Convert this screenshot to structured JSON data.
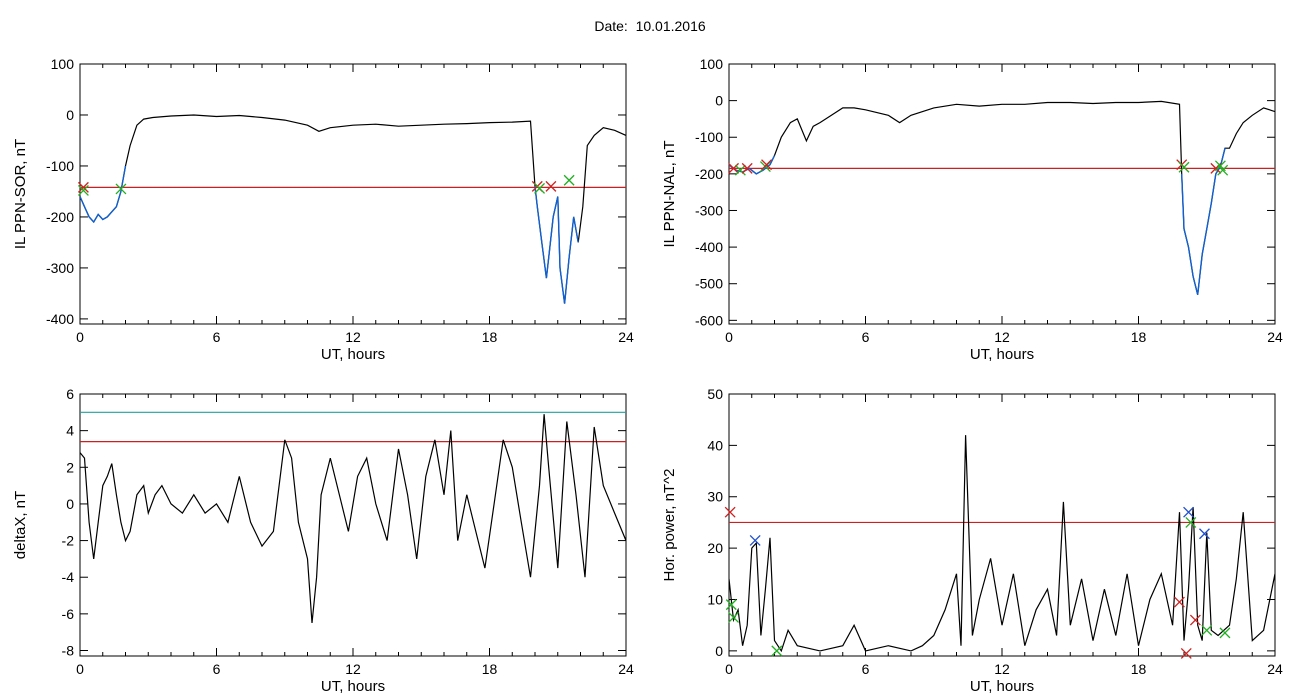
{
  "figure_title": "Date:  10.01.2016",
  "colors": {
    "trace": "#000000",
    "highlight": "#1060d0",
    "threshold": "#cc2020",
    "threshold2": "#20a0a0",
    "marker_red": "#d02020",
    "marker_green": "#20b020",
    "marker_blue": "#2050d0"
  },
  "chart_data": [
    {
      "id": "p1",
      "type": "line",
      "xlabel": "UT, hours",
      "ylabel": "IL PPN-SOR, nT",
      "xlim": [
        0,
        24
      ],
      "ylim": [
        -410,
        100
      ],
      "xticks": [
        0,
        6,
        12,
        18,
        24
      ],
      "yticks": [
        -400,
        -300,
        -200,
        -100,
        0,
        100
      ],
      "series": [
        {
          "x": [
            0,
            0.2,
            0.4,
            0.6,
            0.8,
            1.0,
            1.2,
            1.4,
            1.6,
            1.8,
            2.0,
            2.2,
            2.5,
            2.8,
            3.2,
            4.0,
            5.0,
            6.0,
            7.0,
            8.0,
            9.0,
            10.0,
            10.5,
            11.0,
            12.0,
            13.0,
            14.0,
            15.0,
            16.0,
            17.0,
            18.0,
            19.0,
            19.8,
            20.0,
            20.1,
            20.3,
            20.5,
            20.6,
            20.8,
            21.0,
            21.1,
            21.3,
            21.5,
            21.7,
            21.9,
            22.1,
            22.3,
            22.6,
            23.0,
            23.5,
            24.0
          ],
          "y": [
            -160,
            -180,
            -200,
            -210,
            -195,
            -205,
            -200,
            -190,
            -180,
            -150,
            -100,
            -60,
            -20,
            -8,
            -5,
            -2,
            0,
            -3,
            -1,
            -5,
            -10,
            -20,
            -32,
            -25,
            -20,
            -18,
            -22,
            -20,
            -18,
            -17,
            -15,
            -14,
            -12,
            -140,
            -180,
            -250,
            -320,
            -280,
            -200,
            -160,
            -300,
            -370,
            -280,
            -200,
            -250,
            -180,
            -60,
            -40,
            -25,
            -30,
            -40
          ],
          "highlight": [
            [
              0,
              2.0
            ],
            [
              20.0,
              22.0
            ]
          ]
        }
      ],
      "thresholds": [
        {
          "y": -142,
          "color": "red"
        }
      ],
      "markers": [
        {
          "x": 0.15,
          "y": -142,
          "color": "red"
        },
        {
          "x": 0.15,
          "y": -148,
          "color": "green"
        },
        {
          "x": 1.8,
          "y": -145,
          "color": "green"
        },
        {
          "x": 20.1,
          "y": -140,
          "color": "red"
        },
        {
          "x": 20.2,
          "y": -144,
          "color": "green"
        },
        {
          "x": 20.7,
          "y": -140,
          "color": "red"
        },
        {
          "x": 21.5,
          "y": -128,
          "color": "green"
        }
      ]
    },
    {
      "id": "p2",
      "type": "line",
      "xlabel": "UT, hours",
      "ylabel": "IL PPN-NAL, nT",
      "xlim": [
        0,
        24
      ],
      "ylim": [
        -610,
        100
      ],
      "xticks": [
        0,
        6,
        12,
        18,
        24
      ],
      "yticks": [
        -600,
        -500,
        -400,
        -300,
        -200,
        -100,
        0,
        100
      ],
      "series": [
        {
          "x": [
            0,
            0.3,
            0.6,
            0.9,
            1.2,
            1.5,
            1.8,
            2.0,
            2.3,
            2.7,
            3.0,
            3.4,
            3.7,
            4.0,
            4.5,
            5.0,
            5.5,
            6.0,
            7.0,
            7.5,
            8.0,
            9.0,
            10.0,
            11.0,
            12.0,
            13.0,
            14.0,
            15.0,
            16.0,
            17.0,
            18.0,
            19.0,
            19.8,
            19.9,
            20.0,
            20.2,
            20.4,
            20.6,
            20.8,
            21.0,
            21.2,
            21.4,
            21.6,
            21.8,
            22.0,
            22.3,
            22.6,
            23.0,
            23.5,
            24.0
          ],
          "y": [
            -175,
            -190,
            -195,
            -185,
            -200,
            -190,
            -175,
            -150,
            -100,
            -60,
            -50,
            -110,
            -70,
            -60,
            -40,
            -20,
            -20,
            -25,
            -40,
            -60,
            -40,
            -20,
            -10,
            -15,
            -10,
            -10,
            -5,
            -5,
            -8,
            -5,
            -5,
            -2,
            -10,
            -200,
            -350,
            -400,
            -480,
            -530,
            -420,
            -350,
            -280,
            -200,
            -180,
            -130,
            -130,
            -90,
            -60,
            -40,
            -20,
            -30
          ],
          "highlight": [
            [
              0,
              2.0
            ],
            [
              19.9,
              21.8
            ]
          ]
        }
      ],
      "thresholds": [
        {
          "y": -185,
          "color": "red"
        }
      ],
      "markers": [
        {
          "x": 0.2,
          "y": -185,
          "color": "red"
        },
        {
          "x": 0.5,
          "y": -190,
          "color": "green"
        },
        {
          "x": 0.8,
          "y": -185,
          "color": "red"
        },
        {
          "x": 1.6,
          "y": -180,
          "color": "green"
        },
        {
          "x": 1.65,
          "y": -175,
          "color": "red"
        },
        {
          "x": 19.9,
          "y": -175,
          "color": "red"
        },
        {
          "x": 20.0,
          "y": -182,
          "color": "green"
        },
        {
          "x": 21.4,
          "y": -185,
          "color": "red"
        },
        {
          "x": 21.6,
          "y": -178,
          "color": "green"
        },
        {
          "x": 21.7,
          "y": -190,
          "color": "green"
        }
      ]
    },
    {
      "id": "p3",
      "type": "line",
      "xlabel": "UT, hours",
      "ylabel": "deltaX, nT",
      "xlim": [
        0,
        24
      ],
      "ylim": [
        -8.3,
        6
      ],
      "xticks": [
        0,
        6,
        12,
        18,
        24
      ],
      "yticks": [
        -8,
        -6,
        -4,
        -2,
        0,
        2,
        4,
        6
      ],
      "series": [
        {
          "x": [
            0,
            0.2,
            0.4,
            0.6,
            0.8,
            1.0,
            1.2,
            1.4,
            1.6,
            1.8,
            2.0,
            2.2,
            2.5,
            2.8,
            3.0,
            3.3,
            3.6,
            4.0,
            4.5,
            5.0,
            5.5,
            6.0,
            6.5,
            7.0,
            7.5,
            8.0,
            8.5,
            9.0,
            9.3,
            9.6,
            10.0,
            10.2,
            10.4,
            10.6,
            11.0,
            11.5,
            11.8,
            12.2,
            12.6,
            13.0,
            13.5,
            14.0,
            14.4,
            14.8,
            15.2,
            15.6,
            16.0,
            16.3,
            16.6,
            17.0,
            17.4,
            17.8,
            18.2,
            18.6,
            19.0,
            19.4,
            19.8,
            20.2,
            20.4,
            20.6,
            21.0,
            21.4,
            21.8,
            22.2,
            22.6,
            23.0,
            23.5,
            24.0
          ],
          "y": [
            2.8,
            2.5,
            -1.0,
            -3.0,
            -1.0,
            1.0,
            1.5,
            2.2,
            0.5,
            -1.0,
            -2.0,
            -1.5,
            0.5,
            1.0,
            -0.5,
            0.5,
            1.0,
            0.0,
            -0.5,
            0.5,
            -0.5,
            0.0,
            -1.0,
            1.5,
            -1.0,
            -2.3,
            -1.5,
            3.5,
            2.5,
            -1.0,
            -3.0,
            -6.5,
            -4.0,
            0.5,
            2.5,
            0.0,
            -1.5,
            1.5,
            2.5,
            0.0,
            -2.0,
            3.0,
            0.5,
            -3.0,
            1.5,
            3.5,
            0.5,
            4.0,
            -2.0,
            0.5,
            -1.5,
            -3.5,
            0.0,
            3.5,
            2.0,
            -1.0,
            -4.0,
            1.0,
            4.9,
            2.0,
            -3.5,
            4.5,
            0.5,
            -4.0,
            4.2,
            1.0,
            -0.5,
            -2.0
          ]
        }
      ],
      "thresholds": [
        {
          "y": 5.0,
          "color": "teal"
        },
        {
          "y": 3.4,
          "color": "red"
        }
      ],
      "markers": []
    },
    {
      "id": "p4",
      "type": "line",
      "xlabel": "UT, hours",
      "ylabel": "Hor. power, nT^2",
      "xlim": [
        0,
        24
      ],
      "ylim": [
        -1,
        50
      ],
      "xticks": [
        0,
        6,
        12,
        18,
        24
      ],
      "yticks": [
        0,
        10,
        20,
        30,
        40,
        50
      ],
      "series": [
        {
          "x": [
            0,
            0.2,
            0.4,
            0.6,
            0.8,
            1.0,
            1.2,
            1.4,
            1.6,
            1.8,
            2.0,
            2.3,
            2.6,
            3.0,
            4.0,
            5.0,
            5.5,
            6.0,
            7.0,
            8.0,
            8.5,
            9.0,
            9.5,
            10.0,
            10.2,
            10.4,
            10.7,
            11.0,
            11.5,
            12.0,
            12.5,
            13.0,
            13.5,
            14.0,
            14.4,
            14.7,
            15.0,
            15.5,
            16.0,
            16.5,
            17.0,
            17.5,
            18.0,
            18.5,
            19.0,
            19.5,
            19.8,
            20.0,
            20.2,
            20.4,
            20.6,
            20.8,
            21.0,
            21.2,
            21.5,
            22.0,
            22.3,
            22.6,
            23.0,
            23.5,
            24.0
          ],
          "y": [
            14,
            6,
            8,
            1,
            5,
            20,
            21,
            3,
            12,
            22,
            2,
            0,
            4,
            1,
            0,
            1,
            5,
            0,
            1,
            0,
            1,
            3,
            8,
            15,
            1,
            42,
            3,
            10,
            18,
            5,
            15,
            1,
            8,
            12,
            3,
            29,
            5,
            14,
            2,
            12,
            3,
            15,
            1,
            10,
            15,
            5,
            27,
            2,
            12,
            28,
            5,
            2,
            23,
            4,
            3,
            5,
            14,
            27,
            2,
            4,
            15
          ],
          "highlight": []
        }
      ],
      "thresholds": [
        {
          "y": 25,
          "color": "red"
        }
      ],
      "markers": [
        {
          "x": 0.05,
          "y": 27,
          "color": "red"
        },
        {
          "x": 0.1,
          "y": 9,
          "color": "green"
        },
        {
          "x": 0.2,
          "y": 6.5,
          "color": "green"
        },
        {
          "x": 1.15,
          "y": 21.5,
          "color": "blue"
        },
        {
          "x": 2.1,
          "y": 0,
          "color": "green"
        },
        {
          "x": 19.8,
          "y": 9.5,
          "color": "red"
        },
        {
          "x": 20.2,
          "y": 27,
          "color": "blue"
        },
        {
          "x": 20.3,
          "y": 25,
          "color": "green"
        },
        {
          "x": 20.5,
          "y": 6,
          "color": "red"
        },
        {
          "x": 20.1,
          "y": -0.5,
          "color": "red"
        },
        {
          "x": 20.9,
          "y": 22.8,
          "color": "blue"
        },
        {
          "x": 21.0,
          "y": 4,
          "color": "green"
        },
        {
          "x": 21.8,
          "y": 3.5,
          "color": "green"
        }
      ]
    }
  ]
}
